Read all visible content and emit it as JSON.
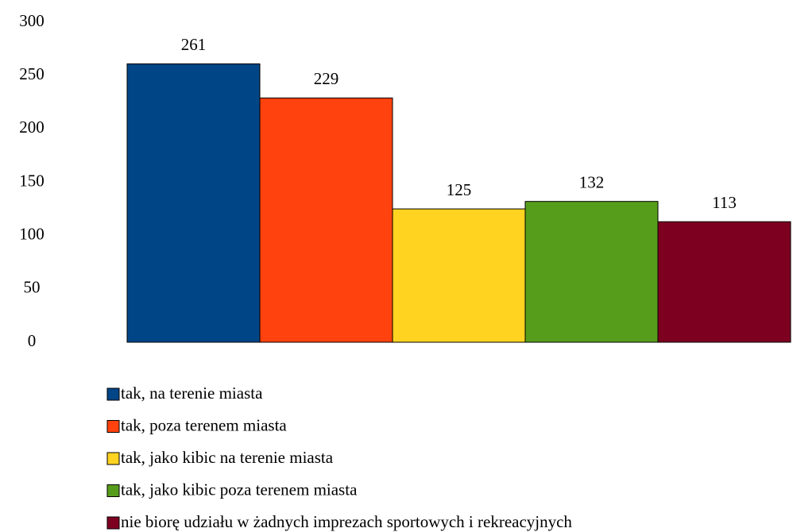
{
  "chart_data": {
    "type": "bar",
    "series": [
      {
        "name": "tak, na terenie miasta",
        "color": "#004586",
        "values": [
          261
        ]
      },
      {
        "name": "tak, poza terenem miasta",
        "color": "#ff420e",
        "values": [
          229
        ]
      },
      {
        "name": "tak, jako kibic na terenie miasta",
        "color": "#ffd320",
        "values": [
          125
        ]
      },
      {
        "name": "tak, jako kibic poza terenem miasta",
        "color": "#579d1c",
        "values": [
          132
        ]
      },
      {
        "name": "nie biorę udziału w żadnych imprezach sportowych i rekreacyjnych",
        "color": "#7e0021",
        "values": [
          113
        ]
      }
    ],
    "ylim": [
      0,
      300
    ],
    "yticks": [
      0,
      50,
      100,
      150,
      200,
      250,
      300
    ],
    "grid": false,
    "legend": "bottom"
  }
}
